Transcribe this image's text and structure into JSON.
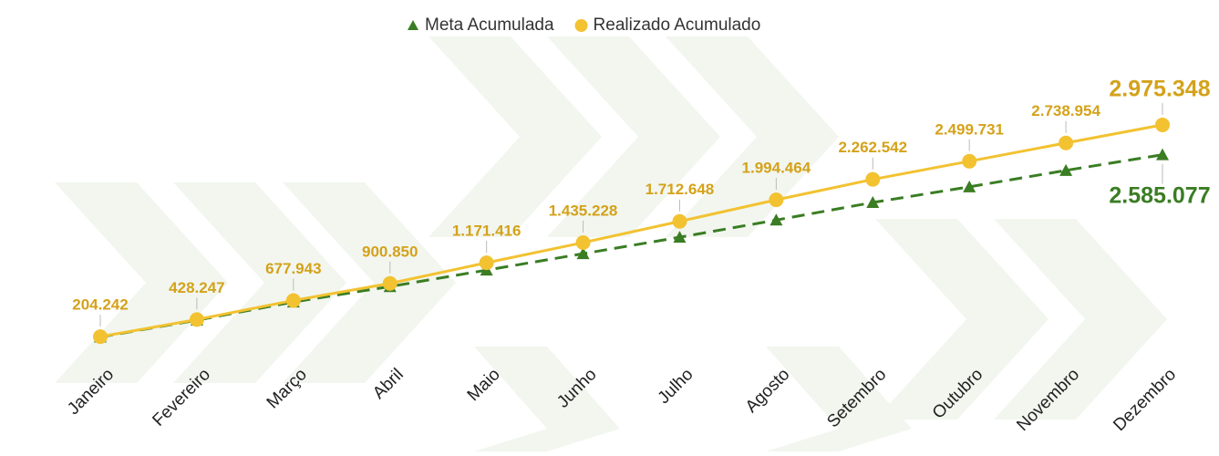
{
  "chart_data": {
    "type": "line",
    "categories": [
      "Janeiro",
      "Fevereiro",
      "Março",
      "Abril",
      "Maio",
      "Junho",
      "Julho",
      "Agosto",
      "Setembro",
      "Outubro",
      "Novembro",
      "Dezembro"
    ],
    "series": [
      {
        "name": "Meta Acumulada",
        "color": "#3a7d23",
        "dashed": true,
        "marker": "triangle",
        "values": [
          200000,
          420000,
          658000,
          860000,
          1075000,
          1290000,
          1505000,
          1730000,
          1960000,
          2165000,
          2380000,
          2585077
        ],
        "value_labels": [
          null,
          null,
          null,
          null,
          null,
          null,
          null,
          null,
          null,
          null,
          null,
          "2.585.077"
        ]
      },
      {
        "name": "Realizado Acumulado",
        "color": "#f2c231",
        "label_color": "#d4a21a",
        "marker": "circle",
        "values": [
          204242,
          428247,
          677943,
          900850,
          1171416,
          1435228,
          1712648,
          1994464,
          2262542,
          2499731,
          2738954,
          2975348
        ],
        "value_labels": [
          "204.242",
          "428.247",
          "677.943",
          "900.850",
          "1.171.416",
          "1.435.228",
          "1.712.648",
          "1.994.464",
          "2.262.542",
          "2.499.731",
          "2.738.954",
          "2.975.348"
        ]
      }
    ],
    "ylim": [
      -200000,
      3500000
    ],
    "legend": "top"
  }
}
